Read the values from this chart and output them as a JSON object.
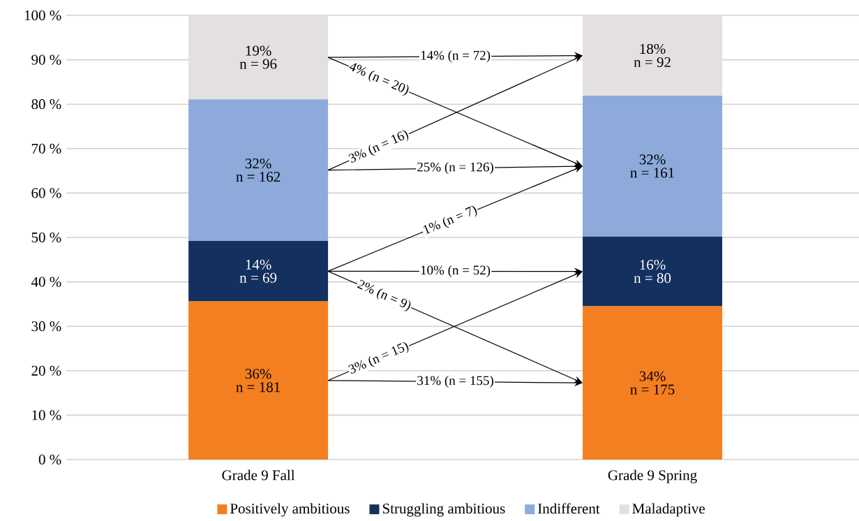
{
  "chart_data": {
    "type": "bar",
    "stacked": true,
    "categories": [
      "Grade 9 Fall",
      "Grade 9 Spring"
    ],
    "series": [
      {
        "name": "Positively ambitious",
        "color": "#f47f20",
        "values": [
          35.6,
          34.5
        ],
        "value_labels": [
          "36%",
          "34%"
        ]
      },
      {
        "name": "Struggling ambitious",
        "color": "#13305e",
        "values": [
          13.6,
          15.7
        ],
        "value_labels": [
          "14%",
          "16%"
        ]
      },
      {
        "name": "Indifferent",
        "color": "#8eaadb",
        "values": [
          31.9,
          31.7
        ],
        "value_labels": [
          "32%",
          "32%"
        ]
      },
      {
        "name": "Maladaptive",
        "color": "#e4e0e1",
        "values": [
          18.9,
          18.1
        ],
        "value_labels": [
          "19%",
          "18%"
        ]
      }
    ],
    "ylim": [
      0,
      100
    ],
    "yticks": [
      {
        "value": 0,
        "label": "0 %"
      },
      {
        "value": 10,
        "label": "10 %"
      },
      {
        "value": 20,
        "label": "20 %"
      },
      {
        "value": 30,
        "label": "30 %"
      },
      {
        "value": 40,
        "label": "40 %"
      },
      {
        "value": 50,
        "label": "50 %"
      },
      {
        "value": 60,
        "label": "60 %"
      },
      {
        "value": 70,
        "label": "70 %"
      },
      {
        "value": 80,
        "label": "80 %"
      },
      {
        "value": 90,
        "label": "90 %"
      },
      {
        "value": 100,
        "label": "100 %"
      }
    ],
    "grid": "y",
    "legend": "bottom",
    "annotations": [
      "14% (n = 72)",
      "4% (n = 20)",
      "3% (n = 16)",
      "25% (n = 126)",
      "1% (n = 7)",
      "10% (n = 52)",
      "2% (n = 9)",
      "3% (n = 15)",
      "31% (n = 155)",
      "n = 181",
      "n = 69",
      "n = 162",
      "n = 96",
      "n = 175",
      "n = 80",
      "n = 161",
      "n = 92"
    ]
  }
}
